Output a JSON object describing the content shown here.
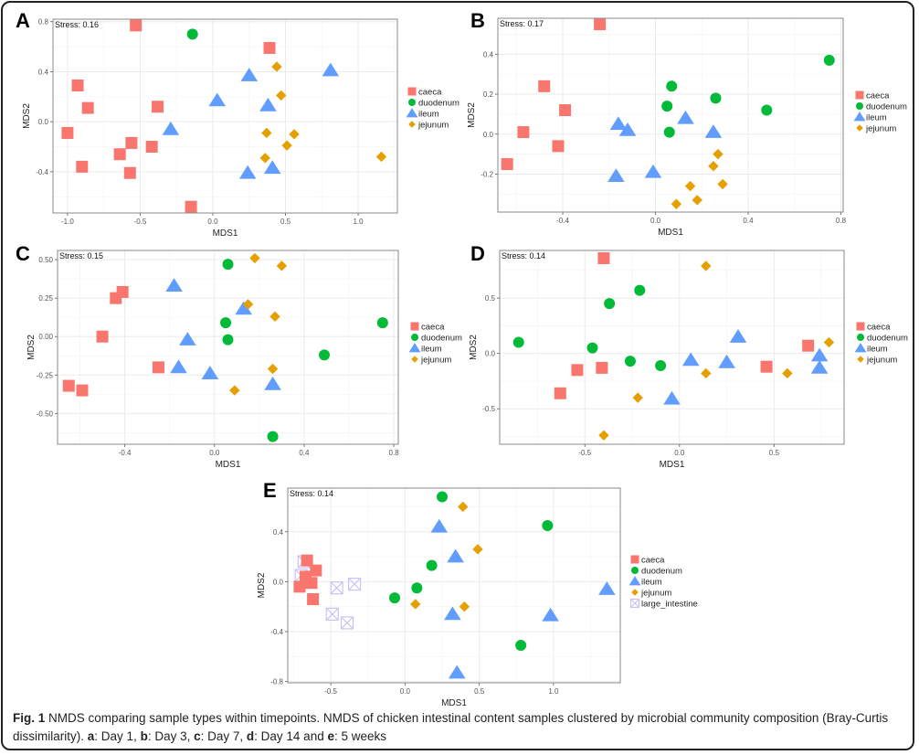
{
  "figure": {
    "label": "Fig. 1",
    "caption_title": "NMDS comparing sample types within timepoints.",
    "caption_body": "NMDS of chicken intestinal content samples clustered by microbial community composition (Bray-Curtis dissimilarity).",
    "caption_keys": [
      {
        "letter": "a",
        "text": ": Day 1, "
      },
      {
        "letter": "b",
        "text": ": Day 3, "
      },
      {
        "letter": "c",
        "text": ": Day 7, "
      },
      {
        "letter": "d",
        "text": ": Day 14 and "
      },
      {
        "letter": "e",
        "text": ": 5 weeks"
      }
    ]
  },
  "colors": {
    "caeca": "#f8766d",
    "duodenum": "#00ba38",
    "ileum": "#619cff",
    "jejunum": "#e69f00",
    "large_intestine": "#c9c3f5"
  },
  "chart_data": [
    {
      "id": "A",
      "type": "scatter",
      "title": "",
      "annotation": "Stress: 0.16",
      "xlabel": "MDS1",
      "ylabel": "MDS2",
      "xlim": [
        -1.1,
        1.27
      ],
      "ylim": [
        -0.73,
        0.82
      ],
      "xticks": [
        -1.0,
        -0.5,
        0.0,
        0.5,
        1.0
      ],
      "xtick_labels": [
        "-1.0",
        "-0.5",
        "0.0",
        "0.5",
        "1.0"
      ],
      "yticks": [
        -0.4,
        0.0,
        0.4,
        0.8
      ],
      "ytick_labels": [
        "-0.4",
        "0.0",
        "0.4",
        "0.8"
      ],
      "grid": true,
      "legend_position": "right",
      "legend": [
        "caeca",
        "duodenum",
        "ileum",
        "jejunum"
      ],
      "series": [
        {
          "name": "caeca",
          "shape": "square",
          "points": [
            [
              -0.53,
              0.77
            ],
            [
              0.39,
              0.59
            ],
            [
              -0.93,
              0.29
            ],
            [
              -0.86,
              0.11
            ],
            [
              -0.38,
              0.12
            ],
            [
              -1.0,
              -0.09
            ],
            [
              -0.56,
              -0.17
            ],
            [
              -0.42,
              -0.2
            ],
            [
              -0.64,
              -0.26
            ],
            [
              -0.9,
              -0.36
            ],
            [
              -0.57,
              -0.41
            ],
            [
              -0.15,
              -0.68
            ]
          ]
        },
        {
          "name": "duodenum",
          "shape": "circle",
          "points": [
            [
              -0.14,
              0.7
            ]
          ]
        },
        {
          "name": "ileum",
          "shape": "triangle",
          "points": [
            [
              0.25,
              0.37
            ],
            [
              0.81,
              0.41
            ],
            [
              0.03,
              0.17
            ],
            [
              0.38,
              0.13
            ],
            [
              -0.29,
              -0.06
            ],
            [
              0.24,
              -0.41
            ],
            [
              0.41,
              -0.37
            ]
          ]
        },
        {
          "name": "jejunum",
          "shape": "diamond",
          "points": [
            [
              0.44,
              0.44
            ],
            [
              0.47,
              0.21
            ],
            [
              0.37,
              -0.09
            ],
            [
              0.56,
              -0.1
            ],
            [
              0.51,
              -0.19
            ],
            [
              0.36,
              -0.29
            ],
            [
              1.16,
              -0.28
            ]
          ]
        }
      ]
    },
    {
      "id": "B",
      "type": "scatter",
      "title": "",
      "annotation": "Stress: 0.17",
      "xlabel": "MDS1",
      "ylabel": "MDS2",
      "xlim": [
        -0.68,
        0.81
      ],
      "ylim": [
        -0.39,
        0.58
      ],
      "xticks": [
        -0.4,
        0.0,
        0.4,
        0.8
      ],
      "xtick_labels": [
        "-0.4",
        "0.0",
        "0.4",
        "0.8"
      ],
      "yticks": [
        -0.2,
        0.0,
        0.2,
        0.4
      ],
      "ytick_labels": [
        "-0.2",
        "0.0",
        "0.2",
        "0.4"
      ],
      "grid": true,
      "legend_position": "right",
      "legend": [
        "caeca",
        "duodenum",
        "ileum",
        "jejunum"
      ],
      "series": [
        {
          "name": "caeca",
          "shape": "square",
          "points": [
            [
              -0.24,
              0.55
            ],
            [
              -0.48,
              0.24
            ],
            [
              -0.39,
              0.12
            ],
            [
              -0.57,
              0.01
            ],
            [
              -0.42,
              -0.06
            ],
            [
              -0.64,
              -0.15
            ]
          ]
        },
        {
          "name": "duodenum",
          "shape": "circle",
          "points": [
            [
              0.75,
              0.37
            ],
            [
              0.07,
              0.24
            ],
            [
              0.26,
              0.18
            ],
            [
              0.05,
              0.14
            ],
            [
              0.48,
              0.12
            ],
            [
              0.06,
              0.01
            ]
          ]
        },
        {
          "name": "ileum",
          "shape": "triangle",
          "points": [
            [
              0.13,
              0.08
            ],
            [
              -0.16,
              0.05
            ],
            [
              -0.12,
              0.02
            ],
            [
              0.25,
              0.01
            ],
            [
              -0.17,
              -0.21
            ],
            [
              -0.01,
              -0.19
            ]
          ]
        },
        {
          "name": "jejunum",
          "shape": "diamond",
          "points": [
            [
              0.27,
              -0.1
            ],
            [
              0.25,
              -0.16
            ],
            [
              0.29,
              -0.25
            ],
            [
              0.15,
              -0.26
            ],
            [
              0.18,
              -0.33
            ],
            [
              0.09,
              -0.35
            ]
          ]
        }
      ]
    },
    {
      "id": "C",
      "type": "scatter",
      "title": "",
      "annotation": "Stress: 0.15",
      "xlabel": "MDS1",
      "ylabel": "MDS2",
      "xlim": [
        -0.7,
        0.82
      ],
      "ylim": [
        -0.7,
        0.56
      ],
      "xticks": [
        -0.4,
        0.0,
        0.4,
        0.8
      ],
      "xtick_labels": [
        "-0.4",
        "0.0",
        "0.4",
        "0.8"
      ],
      "yticks": [
        -0.5,
        -0.25,
        0.0,
        0.25,
        0.5
      ],
      "ytick_labels": [
        "-0.50",
        "-0.25",
        "0.00",
        "0.25",
        "0.50"
      ],
      "grid": true,
      "legend_position": "right",
      "legend": [
        "caeca",
        "duodenum",
        "ileum",
        "jejunum"
      ],
      "series": [
        {
          "name": "caeca",
          "shape": "square",
          "points": [
            [
              -0.41,
              0.29
            ],
            [
              -0.44,
              0.25
            ],
            [
              -0.5,
              0.0
            ],
            [
              -0.25,
              -0.2
            ],
            [
              -0.65,
              -0.32
            ],
            [
              -0.59,
              -0.35
            ]
          ]
        },
        {
          "name": "duodenum",
          "shape": "circle",
          "points": [
            [
              0.06,
              0.47
            ],
            [
              0.05,
              0.09
            ],
            [
              0.75,
              0.09
            ],
            [
              0.06,
              -0.02
            ],
            [
              0.49,
              -0.12
            ],
            [
              0.26,
              -0.65
            ]
          ]
        },
        {
          "name": "ileum",
          "shape": "triangle",
          "points": [
            [
              -0.18,
              0.33
            ],
            [
              0.13,
              0.18
            ],
            [
              -0.12,
              -0.02
            ],
            [
              -0.16,
              -0.2
            ],
            [
              -0.02,
              -0.24
            ],
            [
              0.26,
              -0.31
            ]
          ]
        },
        {
          "name": "jejunum",
          "shape": "diamond",
          "points": [
            [
              0.18,
              0.51
            ],
            [
              0.3,
              0.46
            ],
            [
              0.15,
              0.21
            ],
            [
              0.27,
              0.13
            ],
            [
              0.26,
              -0.21
            ],
            [
              0.09,
              -0.35
            ]
          ]
        }
      ]
    },
    {
      "id": "D",
      "type": "scatter",
      "title": "",
      "annotation": "Stress: 0.14",
      "xlabel": "MDS1",
      "ylabel": "MDS2",
      "xlim": [
        -0.95,
        0.87
      ],
      "ylim": [
        -0.82,
        0.93
      ],
      "xticks": [
        -0.5,
        0.0,
        0.5
      ],
      "xtick_labels": [
        "-0.5",
        "0.0",
        "0.5"
      ],
      "yticks": [
        -0.5,
        0.0,
        0.5
      ],
      "ytick_labels": [
        "-0.5",
        "0.0",
        "0.5"
      ],
      "grid": true,
      "legend_position": "right",
      "legend": [
        "caeca",
        "duodenum",
        "ileum",
        "jejunum"
      ],
      "series": [
        {
          "name": "caeca",
          "shape": "square",
          "points": [
            [
              -0.4,
              0.86
            ],
            [
              0.68,
              0.07
            ],
            [
              0.46,
              -0.12
            ],
            [
              -0.41,
              -0.13
            ],
            [
              -0.54,
              -0.15
            ],
            [
              -0.63,
              -0.36
            ]
          ]
        },
        {
          "name": "duodenum",
          "shape": "circle",
          "points": [
            [
              -0.21,
              0.57
            ],
            [
              -0.37,
              0.45
            ],
            [
              -0.85,
              0.1
            ],
            [
              -0.46,
              0.05
            ],
            [
              -0.26,
              -0.07
            ],
            [
              -0.1,
              -0.11
            ]
          ]
        },
        {
          "name": "ileum",
          "shape": "triangle",
          "points": [
            [
              0.31,
              0.15
            ],
            [
              0.06,
              -0.06
            ],
            [
              0.25,
              -0.08
            ],
            [
              0.74,
              -0.02
            ],
            [
              0.74,
              -0.13
            ],
            [
              -0.04,
              -0.41
            ]
          ]
        },
        {
          "name": "jejunum",
          "shape": "diamond",
          "points": [
            [
              0.14,
              0.79
            ],
            [
              0.79,
              0.1
            ],
            [
              0.14,
              -0.18
            ],
            [
              0.57,
              -0.18
            ],
            [
              -0.22,
              -0.4
            ],
            [
              -0.4,
              -0.74
            ]
          ]
        }
      ]
    },
    {
      "id": "E",
      "type": "scatter",
      "title": "",
      "annotation": "Stress: 0.14",
      "xlabel": "MDS1",
      "ylabel": "MDS2",
      "xlim": [
        -0.79,
        1.45
      ],
      "ylim": [
        -0.81,
        0.75
      ],
      "xticks": [
        -0.5,
        0.0,
        0.5,
        1.0
      ],
      "xtick_labels": [
        "-0.5",
        "0.0",
        "0.5",
        "1.0"
      ],
      "yticks": [
        -0.8,
        -0.4,
        0.0,
        0.4
      ],
      "ytick_labels": [
        "-0.8",
        "-0.4",
        "0.0",
        "0.4"
      ],
      "grid": true,
      "legend_position": "right",
      "legend": [
        "caeca",
        "duodenum",
        "ileum",
        "jejunum",
        "large_intestine"
      ],
      "series": [
        {
          "name": "large_intestine",
          "shape": "boxx",
          "points": [
            [
              -0.68,
              0.16
            ],
            [
              -0.7,
              0.05
            ],
            [
              -0.46,
              -0.05
            ],
            [
              -0.34,
              -0.02
            ],
            [
              -0.49,
              -0.26
            ],
            [
              -0.39,
              -0.33
            ]
          ]
        },
        {
          "name": "caeca",
          "shape": "square",
          "points": [
            [
              -0.66,
              0.17
            ],
            [
              -0.6,
              0.09
            ],
            [
              -0.67,
              0.04
            ],
            [
              -0.63,
              -0.01
            ],
            [
              -0.71,
              -0.04
            ],
            [
              -0.62,
              -0.14
            ]
          ]
        },
        {
          "name": "duodenum",
          "shape": "circle",
          "points": [
            [
              0.25,
              0.68
            ],
            [
              0.96,
              0.45
            ],
            [
              0.18,
              0.13
            ],
            [
              0.08,
              -0.05
            ],
            [
              -0.07,
              -0.13
            ],
            [
              0.78,
              -0.51
            ]
          ]
        },
        {
          "name": "ileum",
          "shape": "triangle",
          "points": [
            [
              0.23,
              0.44
            ],
            [
              0.34,
              0.2
            ],
            [
              1.36,
              -0.06
            ],
            [
              0.32,
              -0.26
            ],
            [
              0.98,
              -0.27
            ],
            [
              0.35,
              -0.73
            ]
          ]
        },
        {
          "name": "jejunum",
          "shape": "diamond",
          "points": [
            [
              0.39,
              0.6
            ],
            [
              0.49,
              0.26
            ],
            [
              0.07,
              -0.18
            ],
            [
              0.4,
              -0.2
            ]
          ]
        }
      ]
    }
  ]
}
